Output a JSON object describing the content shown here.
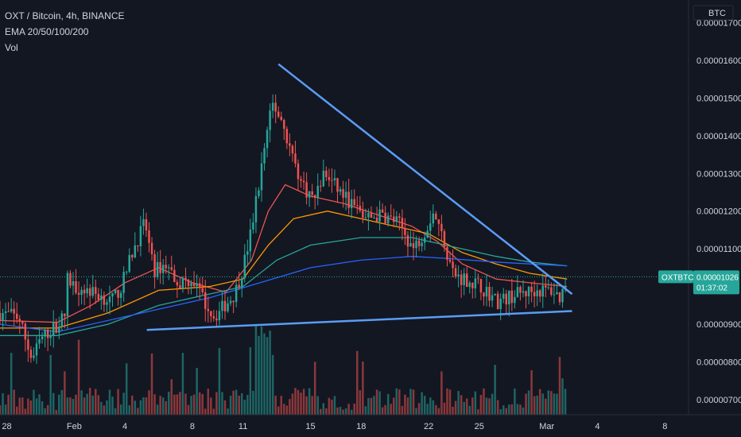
{
  "legend": {
    "title": "OXT / Bitcoin, 4h, BINANCE",
    "indicator": "EMA 20/50/100/200",
    "volume": "Vol"
  },
  "currency_badge": "BTC",
  "price_tag": {
    "symbol": "OXTBTC",
    "price": "0.00001026",
    "countdown": "01:37:02",
    "color": "#26a69a"
  },
  "colors": {
    "background": "#131722",
    "up": "#26a69a",
    "down": "#ef5350",
    "ema20": "#ef5350",
    "ema50": "#ff9800",
    "ema100": "#26a69a",
    "ema200": "#2962ff",
    "trendline": "#5b9cf6"
  },
  "chart_data": {
    "type": "candlestick",
    "title": "OXT / Bitcoin, 4h, BINANCE",
    "indicators": [
      "EMA 20",
      "EMA 50",
      "EMA 100",
      "EMA 200",
      "Vol"
    ],
    "price_ticks": [
      "0.00001700",
      "0.00001600",
      "0.00001500",
      "0.00001400",
      "0.00001300",
      "0.00001200",
      "0.00001100",
      "0.00000900",
      "0.00000800",
      "0.00000700"
    ],
    "price_tick_values": [
      1700,
      1600,
      1500,
      1400,
      1300,
      1200,
      1100,
      900,
      800,
      700
    ],
    "price_scale_unit": 1e-08,
    "time_ticks": [
      {
        "label": "28",
        "day": -3
      },
      {
        "label": "Feb",
        "day": 1
      },
      {
        "label": "4",
        "day": 4
      },
      {
        "label": "8",
        "day": 8
      },
      {
        "label": "11",
        "day": 11
      },
      {
        "label": "15",
        "day": 15
      },
      {
        "label": "18",
        "day": 18
      },
      {
        "label": "22",
        "day": 22
      },
      {
        "label": "25",
        "day": 25
      },
      {
        "label": "Mar",
        "day": 29
      },
      {
        "label": "4",
        "day": 32
      },
      {
        "label": "8",
        "day": 36
      }
    ],
    "day_axis_note": "days from 1 Feb",
    "ylim": [
      660,
      1760
    ],
    "xlim": [
      -3.4,
      37.4
    ],
    "path_points": [
      [
        -3.4,
        930
      ],
      [
        -2.3,
        920
      ],
      [
        -1.5,
        805
      ],
      [
        -1,
        860
      ],
      [
        0,
        900
      ],
      [
        0.5,
        925
      ],
      [
        0.6,
        1020
      ],
      [
        1,
        1000
      ],
      [
        1.8,
        990
      ],
      [
        2.8,
        970
      ],
      [
        3.2,
        960
      ],
      [
        3.8,
        1000
      ],
      [
        4.5,
        1100
      ],
      [
        5.2,
        1170
      ],
      [
        5.7,
        1040
      ],
      [
        6.4,
        1060
      ],
      [
        7.2,
        1010
      ],
      [
        8,
        1020
      ],
      [
        8.7,
        960
      ],
      [
        9.3,
        920
      ],
      [
        9.9,
        950
      ],
      [
        10.5,
        980
      ],
      [
        11,
        1050
      ],
      [
        11.5,
        1150
      ],
      [
        12.2,
        1350
      ],
      [
        12.7,
        1490
      ],
      [
        13.3,
        1440
      ],
      [
        13.9,
        1350
      ],
      [
        14.5,
        1270
      ],
      [
        15.2,
        1230
      ],
      [
        15.8,
        1300
      ],
      [
        16.6,
        1260
      ],
      [
        17.4,
        1220
      ],
      [
        18.3,
        1180
      ],
      [
        19.2,
        1190
      ],
      [
        20.2,
        1170
      ],
      [
        21.1,
        1100
      ],
      [
        21.8,
        1150
      ],
      [
        22.3,
        1200
      ],
      [
        22.9,
        1120
      ],
      [
        23.5,
        1030
      ],
      [
        24.2,
        1020
      ],
      [
        25.1,
        1000
      ],
      [
        26.1,
        960
      ],
      [
        27.2,
        980
      ],
      [
        28.4,
        990
      ],
      [
        29.3,
        990
      ],
      [
        29.8,
        970
      ],
      [
        30.2,
        1026
      ]
    ],
    "ema": [
      {
        "name": "EMA 20",
        "points": [
          [
            -3.4,
            910
          ],
          [
            0,
            905
          ],
          [
            2,
            950
          ],
          [
            4,
            1010
          ],
          [
            6,
            1050
          ],
          [
            8,
            1010
          ],
          [
            10,
            985
          ],
          [
            11.5,
            1070
          ],
          [
            12.5,
            1200
          ],
          [
            13.5,
            1270
          ],
          [
            15,
            1240
          ],
          [
            17,
            1220
          ],
          [
            19,
            1190
          ],
          [
            21,
            1160
          ],
          [
            22.5,
            1120
          ],
          [
            24,
            1060
          ],
          [
            26,
            1020
          ],
          [
            28,
            1010
          ],
          [
            30.2,
            1000
          ]
        ]
      },
      {
        "name": "EMA 50",
        "points": [
          [
            -3.4,
            890
          ],
          [
            0,
            890
          ],
          [
            3,
            930
          ],
          [
            6,
            990
          ],
          [
            9,
            1000
          ],
          [
            11,
            1020
          ],
          [
            12.5,
            1110
          ],
          [
            14,
            1180
          ],
          [
            16,
            1200
          ],
          [
            18,
            1180
          ],
          [
            20,
            1160
          ],
          [
            22,
            1140
          ],
          [
            24,
            1090
          ],
          [
            26,
            1060
          ],
          [
            28,
            1035
          ],
          [
            30.2,
            1020
          ]
        ]
      },
      {
        "name": "EMA 100",
        "points": [
          [
            -3.4,
            870
          ],
          [
            0,
            870
          ],
          [
            3,
            900
          ],
          [
            6,
            950
          ],
          [
            9,
            980
          ],
          [
            11,
            1000
          ],
          [
            13,
            1070
          ],
          [
            15,
            1110
          ],
          [
            18,
            1130
          ],
          [
            21,
            1130
          ],
          [
            23,
            1110
          ],
          [
            26,
            1080
          ],
          [
            28,
            1065
          ],
          [
            30.2,
            1055
          ]
        ]
      },
      {
        "name": "EMA 200",
        "points": [
          [
            -3.4,
            900
          ],
          [
            0,
            880
          ],
          [
            3,
            910
          ],
          [
            6,
            940
          ],
          [
            9,
            970
          ],
          [
            12,
            1010
          ],
          [
            15,
            1050
          ],
          [
            18,
            1070
          ],
          [
            21,
            1080
          ],
          [
            23,
            1075
          ],
          [
            26,
            1065
          ],
          [
            28,
            1060
          ],
          [
            30.2,
            1055
          ]
        ]
      }
    ],
    "trendlines": [
      {
        "from": [
          13.1,
          1590
        ],
        "to": [
          30.5,
          980
        ]
      },
      {
        "from": [
          5.3,
          885
        ],
        "to": [
          30.5,
          935
        ]
      }
    ],
    "last_price": 1026,
    "grid": false,
    "legend_position": "top-left"
  }
}
